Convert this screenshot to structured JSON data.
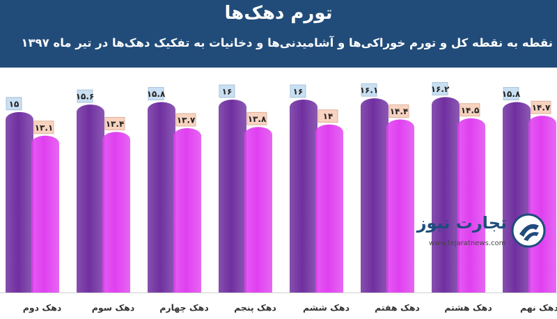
{
  "chart_data": {
    "type": "bar",
    "title": "تورم دهک‌ها",
    "subtitle": "نقطه به نقطه کل و تورم خوراکی‌ها و آشامیدنی‌ها و دخانیات به تفکیک دهک‌ها در تیر ماه ۱۳۹۷",
    "categories": [
      "دهک دوم",
      "دهک سوم",
      "دهک چهارم",
      "دهک پنجم",
      "دهک ششم",
      "دهک هفتم",
      "دهک هشتم",
      "دهک نهم"
    ],
    "series": [
      {
        "values": [
          15,
          15.6,
          15.8,
          16,
          16,
          16.1,
          16.2,
          15.8
        ],
        "labels": [
          "۱۵",
          "۱۵.۶",
          "۱۵.۸",
          "۱۶",
          "۱۶",
          "۱۶.۱",
          "۱۶.۲",
          "۱۵.۸"
        ],
        "color": "#7030a0"
      },
      {
        "values": [
          13.1,
          13.4,
          13.7,
          13.8,
          14,
          14.4,
          14.5,
          14.7
        ],
        "labels": [
          "۱۳.۱",
          "۱۳.۴",
          "۱۳.۷",
          "۱۳.۸",
          "۱۴",
          "۱۴.۴",
          "۱۴.۵",
          "۱۴.۷"
        ],
        "color": "#e040f0"
      }
    ],
    "ylim": [
      0,
      16.5
    ],
    "grid": false,
    "legend": "none"
  },
  "colors": {
    "header": "#214c7a",
    "total_label_bg": "#c9dff2",
    "food_label_bg": "#f8d3c0"
  },
  "logo": {
    "name": "تجارت نیوز",
    "url": "www.tejaratnews.com"
  }
}
